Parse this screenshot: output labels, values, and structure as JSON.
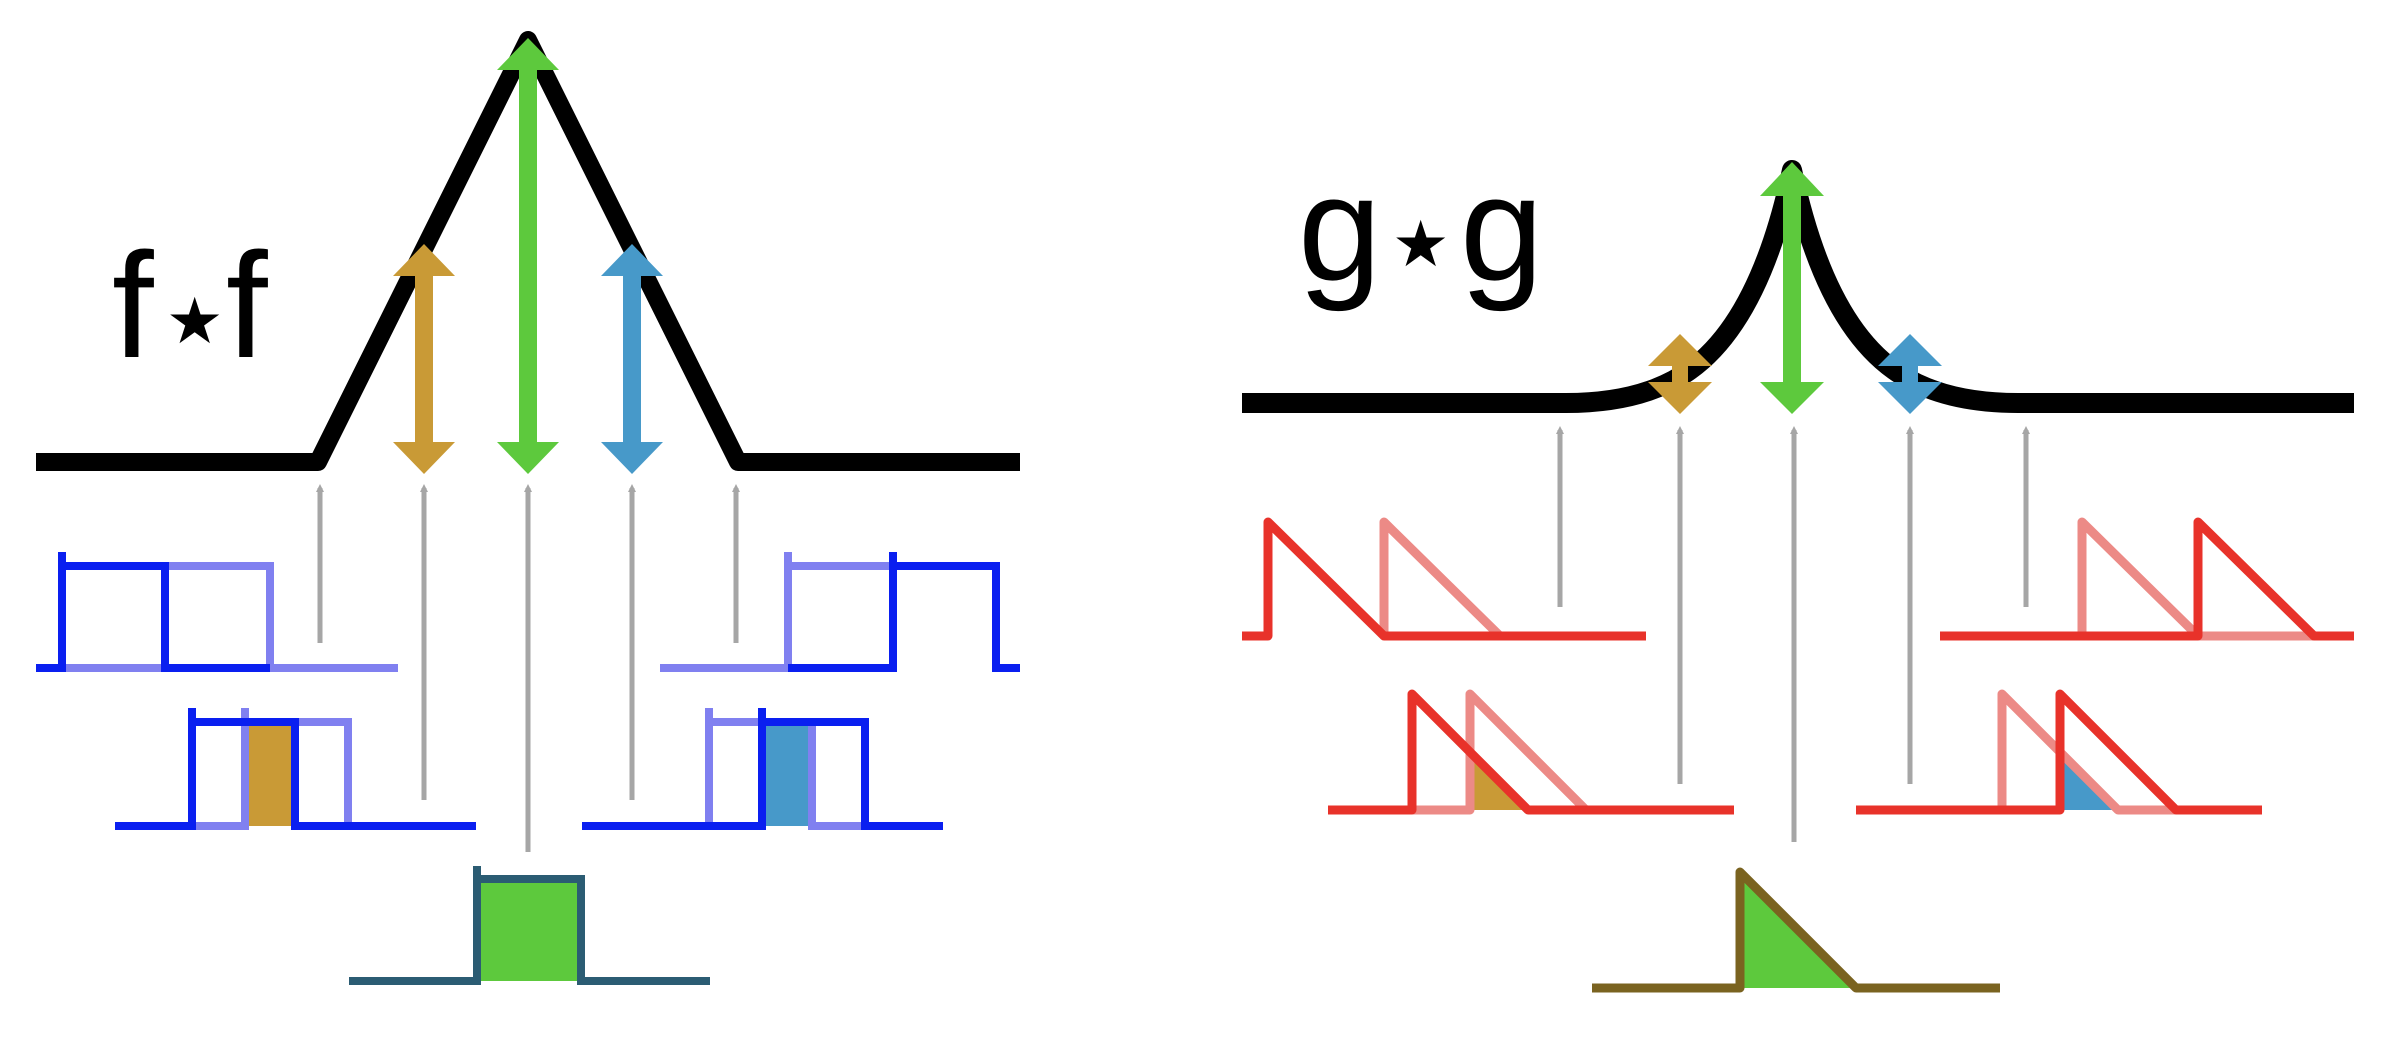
{
  "panels": {
    "left": {
      "label_left": "f",
      "label_star": "★",
      "label_right": "f",
      "function_name": "box",
      "result_shape": "triangle"
    },
    "right": {
      "label_left": "g",
      "label_star": "★",
      "label_right": "g",
      "function_name": "sawtooth",
      "result_shape": "cusp"
    }
  },
  "colors": {
    "result_curve": "#000000",
    "box_function": "#0a1ff0",
    "box_function_shifted": "#8080f0",
    "box_overlap_full": "#5dc93d",
    "box_overlap_border": "#2b5c73",
    "saw_function": "#e8322a",
    "saw_function_shifted": "#ec8a86",
    "saw_overlap_border": "#7a6320",
    "arrow_left_shift": "#c99a36",
    "arrow_right_shift": "#4799c9",
    "arrow_zero_shift": "#5dc93d",
    "guide_arrow": "#a6a6a6"
  }
}
